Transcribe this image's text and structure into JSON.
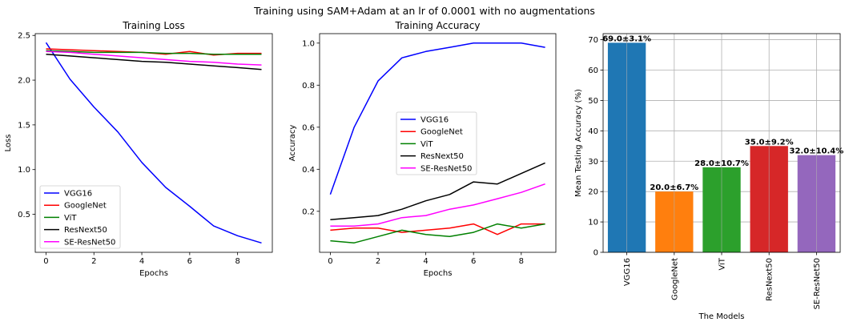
{
  "suptitle": "Training using SAM+Adam at an lr of 0.0001 with no augmentations",
  "chart_data": [
    {
      "type": "line",
      "title": "Training Loss",
      "xlabel": "Epochs",
      "ylabel": "Loss",
      "x": [
        0,
        1,
        2,
        3,
        4,
        5,
        6,
        7,
        8,
        9
      ],
      "xticks": [
        "0",
        "2",
        "4",
        "6",
        "8"
      ],
      "yticks": [
        "0.5",
        "1.0",
        "1.5",
        "2.0",
        "2.5"
      ],
      "xlim": [
        -0.45,
        9.45
      ],
      "ylim": [
        0.075,
        2.52
      ],
      "grid": false,
      "legend_position": "lower-left",
      "series": [
        {
          "name": "VGG16",
          "color": "#0000ff",
          "values": [
            2.42,
            2.01,
            1.7,
            1.42,
            1.08,
            0.8,
            0.59,
            0.37,
            0.26,
            0.18
          ]
        },
        {
          "name": "GoogleNet",
          "color": "#ff0000",
          "values": [
            2.35,
            2.34,
            2.33,
            2.32,
            2.31,
            2.29,
            2.32,
            2.28,
            2.3,
            2.3
          ]
        },
        {
          "name": "ViT",
          "color": "#008000",
          "values": [
            2.33,
            2.32,
            2.31,
            2.31,
            2.31,
            2.3,
            2.3,
            2.29,
            2.29,
            2.29
          ]
        },
        {
          "name": "ResNext50",
          "color": "#000000",
          "values": [
            2.29,
            2.27,
            2.25,
            2.23,
            2.21,
            2.2,
            2.18,
            2.16,
            2.14,
            2.12
          ]
        },
        {
          "name": "SE-ResNet50",
          "color": "#ff00ff",
          "values": [
            2.32,
            2.31,
            2.29,
            2.27,
            2.25,
            2.23,
            2.21,
            2.2,
            2.18,
            2.17
          ]
        }
      ]
    },
    {
      "type": "line",
      "title": "Training Accuracy",
      "xlabel": "Epochs",
      "ylabel": "Accuracy",
      "x": [
        0,
        1,
        2,
        3,
        4,
        5,
        6,
        7,
        8,
        9
      ],
      "xticks": [
        "0",
        "2",
        "4",
        "6",
        "8"
      ],
      "yticks": [
        "0.2",
        "0.4",
        "0.6",
        "0.8",
        "1.0"
      ],
      "xlim": [
        -0.45,
        9.45
      ],
      "ylim": [
        0.005,
        1.045
      ],
      "grid": false,
      "legend_position": "center",
      "series": [
        {
          "name": "VGG16",
          "color": "#0000ff",
          "values": [
            0.28,
            0.6,
            0.82,
            0.93,
            0.96,
            0.98,
            1.0,
            1.0,
            1.0,
            0.98
          ]
        },
        {
          "name": "GoogleNet",
          "color": "#ff0000",
          "values": [
            0.11,
            0.12,
            0.12,
            0.1,
            0.11,
            0.12,
            0.14,
            0.09,
            0.14,
            0.14
          ]
        },
        {
          "name": "ViT",
          "color": "#008000",
          "values": [
            0.06,
            0.05,
            0.08,
            0.11,
            0.09,
            0.08,
            0.1,
            0.14,
            0.12,
            0.14
          ]
        },
        {
          "name": "ResNext50",
          "color": "#000000",
          "values": [
            0.16,
            0.17,
            0.18,
            0.21,
            0.25,
            0.28,
            0.34,
            0.33,
            0.38,
            0.43
          ]
        },
        {
          "name": "SE-ResNet50",
          "color": "#ff00ff",
          "values": [
            0.13,
            0.13,
            0.14,
            0.17,
            0.18,
            0.21,
            0.23,
            0.26,
            0.29,
            0.33
          ]
        }
      ]
    },
    {
      "type": "bar",
      "xlabel": "The Models",
      "ylabel": "Mean Testing Accuracy (%)",
      "categories": [
        "VGG16",
        "GoogleNet",
        "ViT",
        "ResNext50",
        "SE-ResNet50"
      ],
      "values": [
        69.0,
        20.0,
        28.0,
        35.0,
        32.0
      ],
      "labels": [
        "69.0±3.1%",
        "20.0±6.7%",
        "28.0±10.7%",
        "35.0±9.2%",
        "32.0±10.4%"
      ],
      "colors": [
        "#1f77b4",
        "#ff7f0e",
        "#2ca02c",
        "#d62728",
        "#9467bd"
      ],
      "yticks": [
        "0",
        "10",
        "20",
        "30",
        "40",
        "50",
        "60",
        "70"
      ],
      "ylim": [
        0,
        72
      ],
      "grid": true
    }
  ]
}
